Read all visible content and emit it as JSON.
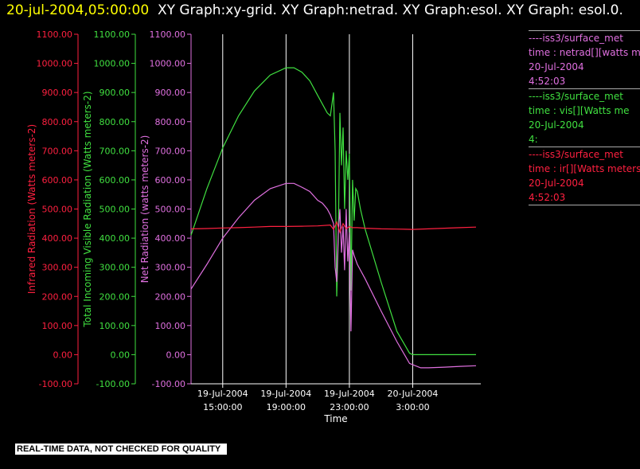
{
  "header": {
    "timestamp": "20-jul-2004,05:00:00",
    "graphs_text": "XY Graph:xy-grid.  XY Graph:netrad.  XY Graph:esol.  XY Graph: esol.0."
  },
  "legend": [
    {
      "lines": [
        "----iss3/surface_met",
        "time : netrad[][watts m",
        "20-Jul-2004",
        "4:52:03"
      ],
      "color": "#e070e0"
    },
    {
      "lines": [
        "----iss3/surface_met",
        "time : vis[][Watts me",
        "20-Jul-2004",
        "4:"
      ],
      "color": "#40e040"
    },
    {
      "lines": [
        "----iss3/surface_met",
        "time : ir[][Watts meters",
        "20-Jul-2004",
        "4:52:03"
      ],
      "color": "#ff2040"
    }
  ],
  "footer": {
    "quality_note": "REAL-TIME DATA, NOT CHECKED FOR QUALITY"
  },
  "colors": {
    "background": "#000000",
    "ir": "#ff2040",
    "vis": "#40e040",
    "netrad": "#e070e0",
    "axis": "#ffffff",
    "grid": "#ffffff"
  },
  "chart_data": {
    "type": "line",
    "xlabel": "Time",
    "x_ticks": [
      "19-Jul-2004 15:00:00",
      "19-Jul-2004 19:00:00",
      "19-Jul-2004 23:00:00",
      "20-Jul-2004 3:00:00"
    ],
    "x_tick_hours": [
      15,
      19,
      23,
      27
    ],
    "xlim_hours": [
      13,
      31.3
    ],
    "grid": true,
    "axes": [
      {
        "name": "ir",
        "label": "Infrared Radiation (Watts meters-2)",
        "ylim": [
          -100,
          1100
        ],
        "color": "#ff2040",
        "ticks": [
          "-100.00",
          "0.00",
          "100.00",
          "200.00",
          "300.00",
          "400.00",
          "500.00",
          "600.00",
          "700.00",
          "800.00",
          "900.00",
          "1000.00",
          "1100.00"
        ]
      },
      {
        "name": "vis",
        "label": "Total Incoming Visible Radiation (Watts meters-2)",
        "ylim": [
          -100,
          1100
        ],
        "color": "#40e040",
        "ticks": [
          "-100.00",
          "0.00",
          "100.00",
          "200.00",
          "300.00",
          "400.00",
          "500.00",
          "600.00",
          "700.00",
          "800.00",
          "900.00",
          "1000.00",
          "1100.00"
        ]
      },
      {
        "name": "netrad",
        "label": "Net Radiation (watts meters-2)",
        "ylim": [
          -100,
          1100
        ],
        "color": "#e070e0",
        "ticks": [
          "-100.00",
          "0.00",
          "100.00",
          "200.00",
          "300.00",
          "400.00",
          "500.00",
          "600.00",
          "700.00",
          "800.00",
          "900.00",
          "1000.00",
          "1100.00"
        ]
      }
    ],
    "series": [
      {
        "name": "----iss3/surface_met time : vis[][Watts me",
        "color": "#40e040",
        "x": [
          13,
          14,
          15,
          16,
          17,
          18,
          19,
          19.5,
          20,
          20.5,
          21,
          21.3,
          21.6,
          21.8,
          22,
          22.1,
          22.2,
          22.3,
          22.4,
          22.5,
          22.6,
          22.7,
          22.8,
          22.9,
          23,
          23.1,
          23.2,
          23.3,
          23.4,
          23.5,
          23.7,
          24,
          25,
          26,
          26.8,
          27,
          28,
          29,
          30,
          31
        ],
        "y": [
          410,
          570,
          710,
          820,
          905,
          960,
          985,
          985,
          970,
          940,
          890,
          860,
          830,
          820,
          900,
          700,
          200,
          400,
          830,
          650,
          780,
          500,
          700,
          600,
          690,
          220,
          600,
          460,
          570,
          560,
          500,
          430,
          250,
          80,
          5,
          0,
          0,
          0,
          0,
          0
        ]
      },
      {
        "name": "----iss3/surface_met time : netrad[][watts m",
        "color": "#e070e0",
        "x": [
          13,
          14,
          15,
          16,
          17,
          18,
          19,
          19.5,
          20,
          20.5,
          21,
          21.3,
          21.6,
          21.8,
          22,
          22.1,
          22.2,
          22.3,
          22.4,
          22.5,
          22.6,
          22.7,
          22.8,
          22.9,
          23,
          23.1,
          23.2,
          23.3,
          23.5,
          24,
          25,
          26,
          26.8,
          27.5,
          28,
          29,
          30,
          31
        ],
        "y": [
          225,
          310,
          400,
          470,
          530,
          570,
          588,
          588,
          575,
          560,
          530,
          520,
          500,
          480,
          450,
          300,
          250,
          420,
          500,
          350,
          440,
          290,
          500,
          320,
          420,
          80,
          360,
          340,
          310,
          260,
          150,
          45,
          -30,
          -45,
          -45,
          -43,
          -40,
          -38
        ]
      },
      {
        "name": "----iss3/surface_met time : ir[][Watts meters",
        "color": "#ff2040",
        "x": [
          13,
          14,
          15,
          16,
          17,
          18,
          19,
          20,
          21,
          21.8,
          22,
          22.2,
          22.4,
          22.6,
          22.8,
          23,
          23.2,
          23.5,
          24,
          25,
          26,
          27,
          28,
          29,
          30,
          31
        ],
        "y": [
          432,
          433,
          435,
          436,
          438,
          440,
          440,
          441,
          442,
          445,
          430,
          455,
          420,
          450,
          432,
          440,
          436,
          436,
          434,
          432,
          431,
          430,
          432,
          434,
          436,
          438
        ]
      }
    ]
  }
}
